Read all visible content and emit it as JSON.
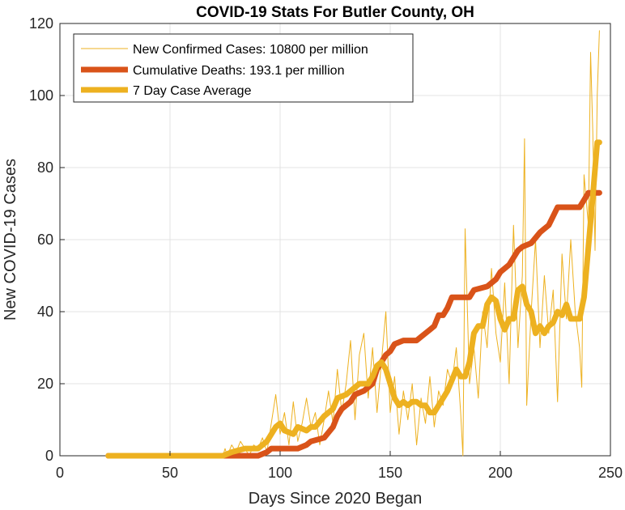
{
  "chart_data": {
    "type": "line",
    "title": "COVID-19 Stats For Butler County, OH",
    "xlabel": "Days Since 2020 Began",
    "ylabel": "New COVID-19 Cases",
    "xlim": [
      0,
      250
    ],
    "ylim": [
      0,
      120
    ],
    "xticks": [
      0,
      50,
      100,
      150,
      200,
      250
    ],
    "yticks": [
      0,
      20,
      40,
      60,
      80,
      100,
      120
    ],
    "grid": true,
    "legend_position": "top-left",
    "series": [
      {
        "name": "New Confirmed Cases: 10800 per million",
        "color": "#EDB120",
        "style": "thin",
        "points": [
          [
            22,
            0
          ],
          [
            74,
            0
          ],
          [
            75,
            2
          ],
          [
            76,
            0
          ],
          [
            78,
            3
          ],
          [
            80,
            1
          ],
          [
            82,
            4
          ],
          [
            84,
            2
          ],
          [
            86,
            0
          ],
          [
            88,
            3
          ],
          [
            90,
            2
          ],
          [
            92,
            5
          ],
          [
            94,
            1
          ],
          [
            96,
            9
          ],
          [
            98,
            17
          ],
          [
            100,
            6
          ],
          [
            102,
            12
          ],
          [
            104,
            3
          ],
          [
            106,
            15
          ],
          [
            108,
            4
          ],
          [
            110,
            9
          ],
          [
            112,
            16
          ],
          [
            114,
            8
          ],
          [
            116,
            12
          ],
          [
            118,
            3
          ],
          [
            120,
            10
          ],
          [
            122,
            18
          ],
          [
            124,
            9
          ],
          [
            126,
            24
          ],
          [
            128,
            12
          ],
          [
            130,
            20
          ],
          [
            132,
            32
          ],
          [
            134,
            10
          ],
          [
            136,
            28
          ],
          [
            138,
            34
          ],
          [
            140,
            16
          ],
          [
            142,
            30
          ],
          [
            144,
            12
          ],
          [
            146,
            26
          ],
          [
            148,
            40
          ],
          [
            150,
            12
          ],
          [
            152,
            22
          ],
          [
            154,
            6
          ],
          [
            156,
            18
          ],
          [
            158,
            10
          ],
          [
            160,
            20
          ],
          [
            162,
            3
          ],
          [
            164,
            16
          ],
          [
            166,
            9
          ],
          [
            168,
            22
          ],
          [
            170,
            8
          ],
          [
            172,
            18
          ],
          [
            174,
            14
          ],
          [
            176,
            24
          ],
          [
            178,
            20
          ],
          [
            180,
            30
          ],
          [
            182,
            12
          ],
          [
            183,
            0
          ],
          [
            184,
            63
          ],
          [
            186,
            20
          ],
          [
            188,
            30
          ],
          [
            190,
            16
          ],
          [
            192,
            40
          ],
          [
            194,
            30
          ],
          [
            196,
            52
          ],
          [
            198,
            34
          ],
          [
            200,
            26
          ],
          [
            202,
            48
          ],
          [
            204,
            20
          ],
          [
            206,
            64
          ],
          [
            208,
            30
          ],
          [
            210,
            50
          ],
          [
            211,
            88
          ],
          [
            212,
            14
          ],
          [
            214,
            40
          ],
          [
            216,
            60
          ],
          [
            218,
            30
          ],
          [
            220,
            50
          ],
          [
            222,
            34
          ],
          [
            224,
            46
          ],
          [
            226,
            15
          ],
          [
            228,
            56
          ],
          [
            230,
            38
          ],
          [
            232,
            60
          ],
          [
            234,
            40
          ],
          [
            236,
            30
          ],
          [
            237,
            19
          ],
          [
            238,
            78
          ],
          [
            240,
            64
          ],
          [
            241,
            112
          ],
          [
            242,
            90
          ],
          [
            243,
            57
          ],
          [
            244,
            100
          ],
          [
            245,
            118
          ]
        ]
      },
      {
        "name": "Cumulative Deaths: 193.1 per million",
        "color": "#D95319",
        "style": "thick",
        "points": [
          [
            22,
            0
          ],
          [
            90,
            0
          ],
          [
            94,
            1
          ],
          [
            96,
            2
          ],
          [
            108,
            2
          ],
          [
            112,
            3
          ],
          [
            114,
            4
          ],
          [
            120,
            5
          ],
          [
            124,
            8
          ],
          [
            126,
            11
          ],
          [
            128,
            13
          ],
          [
            132,
            15
          ],
          [
            134,
            17
          ],
          [
            138,
            18
          ],
          [
            142,
            20
          ],
          [
            144,
            24
          ],
          [
            146,
            26
          ],
          [
            148,
            28
          ],
          [
            150,
            29
          ],
          [
            152,
            31
          ],
          [
            156,
            32
          ],
          [
            162,
            32
          ],
          [
            164,
            33
          ],
          [
            168,
            35
          ],
          [
            170,
            36
          ],
          [
            172,
            39
          ],
          [
            174,
            39
          ],
          [
            176,
            41
          ],
          [
            178,
            44
          ],
          [
            186,
            44
          ],
          [
            188,
            46
          ],
          [
            194,
            47
          ],
          [
            198,
            49
          ],
          [
            200,
            51
          ],
          [
            204,
            53
          ],
          [
            206,
            55
          ],
          [
            208,
            57
          ],
          [
            210,
            58
          ],
          [
            214,
            59
          ],
          [
            218,
            62
          ],
          [
            220,
            63
          ],
          [
            222,
            64
          ],
          [
            226,
            69
          ],
          [
            236,
            69
          ],
          [
            238,
            71
          ],
          [
            240,
            73
          ],
          [
            245,
            73
          ]
        ]
      },
      {
        "name": "7 Day Case Average",
        "color": "#EDB120",
        "style": "thick",
        "points": [
          [
            22,
            0
          ],
          [
            74,
            0
          ],
          [
            78,
            1
          ],
          [
            84,
            2
          ],
          [
            90,
            2
          ],
          [
            94,
            4
          ],
          [
            98,
            8
          ],
          [
            100,
            9
          ],
          [
            102,
            7
          ],
          [
            106,
            6
          ],
          [
            108,
            8
          ],
          [
            112,
            7
          ],
          [
            114,
            8
          ],
          [
            116,
            8
          ],
          [
            120,
            11
          ],
          [
            124,
            13
          ],
          [
            126,
            16
          ],
          [
            130,
            17
          ],
          [
            132,
            18
          ],
          [
            136,
            20
          ],
          [
            140,
            20
          ],
          [
            142,
            22
          ],
          [
            144,
            25
          ],
          [
            146,
            26
          ],
          [
            148,
            24
          ],
          [
            150,
            20
          ],
          [
            152,
            16
          ],
          [
            154,
            14
          ],
          [
            156,
            15
          ],
          [
            158,
            14
          ],
          [
            160,
            15
          ],
          [
            162,
            15
          ],
          [
            164,
            14
          ],
          [
            166,
            14
          ],
          [
            168,
            12
          ],
          [
            170,
            12
          ],
          [
            172,
            14
          ],
          [
            174,
            16
          ],
          [
            176,
            18
          ],
          [
            178,
            21
          ],
          [
            180,
            24
          ],
          [
            182,
            22
          ],
          [
            184,
            22
          ],
          [
            186,
            26
          ],
          [
            188,
            34
          ],
          [
            190,
            36
          ],
          [
            192,
            36
          ],
          [
            194,
            42
          ],
          [
            196,
            44
          ],
          [
            198,
            43
          ],
          [
            200,
            38
          ],
          [
            202,
            35
          ],
          [
            204,
            38
          ],
          [
            206,
            38
          ],
          [
            208,
            46
          ],
          [
            210,
            47
          ],
          [
            212,
            42
          ],
          [
            214,
            40
          ],
          [
            216,
            34
          ],
          [
            218,
            36
          ],
          [
            220,
            34
          ],
          [
            222,
            36
          ],
          [
            224,
            37
          ],
          [
            226,
            40
          ],
          [
            228,
            39
          ],
          [
            230,
            42
          ],
          [
            232,
            38
          ],
          [
            234,
            38
          ],
          [
            236,
            38
          ],
          [
            238,
            44
          ],
          [
            240,
            58
          ],
          [
            242,
            72
          ],
          [
            244,
            87
          ],
          [
            245,
            87
          ]
        ]
      }
    ]
  }
}
